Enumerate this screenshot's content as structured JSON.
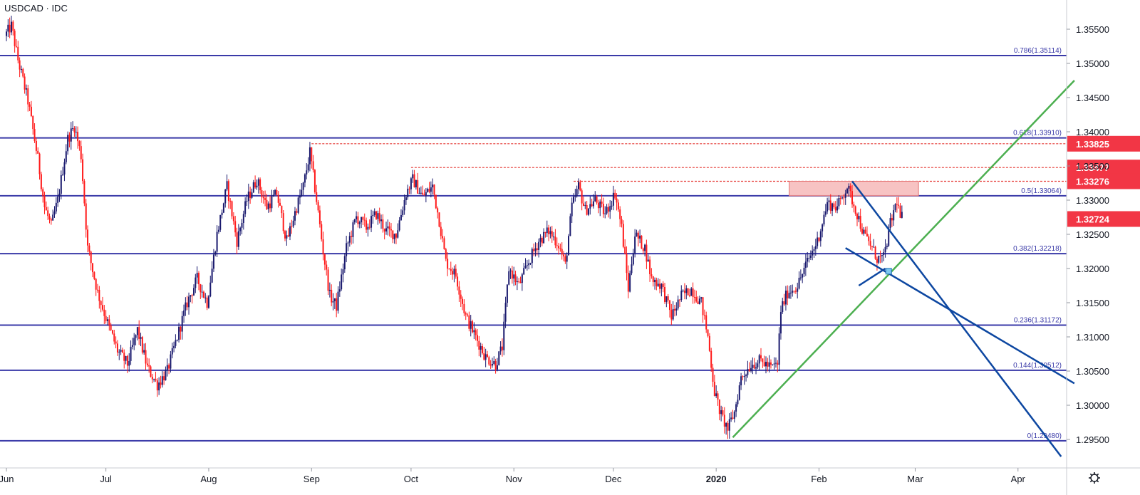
{
  "chart_data": {
    "type": "candlestick",
    "title": "USDCAD · IDC",
    "y_range": [
      1.2925,
      1.358
    ],
    "y_ticks": [
      "1.35500",
      "1.35000",
      "1.34500",
      "1.34000",
      "1.33500",
      "1.33000",
      "1.32500",
      "1.32000",
      "1.31500",
      "1.31000",
      "1.30500",
      "1.30000",
      "1.29500"
    ],
    "x_ticks": [
      {
        "label": "Jun",
        "day": 0
      },
      {
        "label": "Jul",
        "day": 30
      },
      {
        "label": "Aug",
        "day": 61
      },
      {
        "label": "Sep",
        "day": 92
      },
      {
        "label": "Oct",
        "day": 122
      },
      {
        "label": "Nov",
        "day": 153
      },
      {
        "label": "Dec",
        "day": 183
      },
      {
        "label": "2020",
        "day": 214,
        "bold": true
      },
      {
        "label": "Feb",
        "day": 245
      },
      {
        "label": "Mar",
        "day": 274
      },
      {
        "label": "Apr",
        "day": 305
      }
    ],
    "fib_levels": [
      {
        "label": "0.786(1.35114)",
        "value": 1.35114
      },
      {
        "label": "0.618(1.33910)",
        "value": 1.3391
      },
      {
        "label": "0.5(1.33064)",
        "value": 1.33064
      },
      {
        "label": "0.382(1.32218)",
        "value": 1.32218
      },
      {
        "label": "0.236(1.31172)",
        "value": 1.31172
      },
      {
        "label": "0.144(1.30512)",
        "value": 1.30512
      },
      {
        "label": "0(1.29480)",
        "value": 1.2948
      }
    ],
    "resistance_levels": [
      {
        "label": "1.33825",
        "value": 1.33825,
        "start_day": 92
      },
      {
        "label": "1.33477",
        "value": 1.33477,
        "start_day": 122
      },
      {
        "label": "1.33276",
        "value": 1.33276,
        "start_day": 171
      }
    ],
    "current_price": {
      "label": "1.32724",
      "value": 1.32724
    },
    "resistance_zone": {
      "start_day": 236,
      "end_day": 275,
      "low": 1.33064,
      "high": 1.33276
    },
    "trendlines": [
      {
        "color": "#4caf50",
        "points": [
          [
            219,
            1.2953
          ],
          [
            322,
            1.3475
          ]
        ]
      },
      {
        "color": "#0d47a1",
        "points": [
          [
            255,
            1.33276
          ],
          [
            318,
            1.2925
          ]
        ]
      },
      {
        "color": "#0d47a1",
        "points": [
          [
            253,
            1.323
          ],
          [
            322,
            1.3032
          ]
        ]
      },
      {
        "color": "#0d47a1",
        "points": [
          [
            257,
            1.3175
          ],
          [
            265,
            1.32
          ]
        ]
      }
    ],
    "pivot_marker": {
      "day": 266,
      "value": 1.3196
    },
    "anchors": [
      [
        0,
        1.354
      ],
      [
        2,
        1.3555
      ],
      [
        4,
        1.3505
      ],
      [
        7,
        1.3445
      ],
      [
        10,
        1.336
      ],
      [
        12,
        1.329
      ],
      [
        14,
        1.3262
      ],
      [
        16,
        1.33
      ],
      [
        19,
        1.339
      ],
      [
        21,
        1.3408
      ],
      [
        23,
        1.3365
      ],
      [
        25,
        1.323
      ],
      [
        28,
        1.3165
      ],
      [
        31,
        1.312
      ],
      [
        34,
        1.308
      ],
      [
        37,
        1.306
      ],
      [
        40,
        1.311
      ],
      [
        43,
        1.3055
      ],
      [
        46,
        1.303
      ],
      [
        49,
        1.305
      ],
      [
        52,
        1.31
      ],
      [
        55,
        1.315
      ],
      [
        58,
        1.3185
      ],
      [
        61,
        1.315
      ],
      [
        64,
        1.325
      ],
      [
        67,
        1.332
      ],
      [
        70,
        1.324
      ],
      [
        73,
        1.33
      ],
      [
        76,
        1.333
      ],
      [
        79,
        1.329
      ],
      [
        82,
        1.331
      ],
      [
        85,
        1.324
      ],
      [
        88,
        1.329
      ],
      [
        90,
        1.332
      ],
      [
        92,
        1.337
      ],
      [
        94,
        1.33
      ],
      [
        96,
        1.3225
      ],
      [
        98,
        1.316
      ],
      [
        100,
        1.3145
      ],
      [
        103,
        1.323
      ],
      [
        106,
        1.3275
      ],
      [
        109,
        1.326
      ],
      [
        112,
        1.328
      ],
      [
        115,
        1.3255
      ],
      [
        118,
        1.325
      ],
      [
        121,
        1.331
      ],
      [
        123,
        1.333
      ],
      [
        126,
        1.3305
      ],
      [
        129,
        1.332
      ],
      [
        131,
        1.327
      ],
      [
        133,
        1.321
      ],
      [
        136,
        1.319
      ],
      [
        139,
        1.313
      ],
      [
        142,
        1.31
      ],
      [
        145,
        1.307
      ],
      [
        148,
        1.306
      ],
      [
        150,
        1.3085
      ],
      [
        152,
        1.32
      ],
      [
        155,
        1.3175
      ],
      [
        158,
        1.321
      ],
      [
        161,
        1.324
      ],
      [
        164,
        1.3255
      ],
      [
        167,
        1.3235
      ],
      [
        169,
        1.3205
      ],
      [
        171,
        1.329
      ],
      [
        173,
        1.332
      ],
      [
        175,
        1.3285
      ],
      [
        178,
        1.33
      ],
      [
        181,
        1.328
      ],
      [
        184,
        1.331
      ],
      [
        186,
        1.326
      ],
      [
        188,
        1.317
      ],
      [
        190,
        1.325
      ],
      [
        193,
        1.323
      ],
      [
        195,
        1.3185
      ],
      [
        198,
        1.3175
      ],
      [
        201,
        1.313
      ],
      [
        204,
        1.316
      ],
      [
        207,
        1.317
      ],
      [
        210,
        1.315
      ],
      [
        212,
        1.31
      ],
      [
        214,
        1.302
      ],
      [
        216,
        1.2985
      ],
      [
        218,
        1.2965
      ],
      [
        220,
        1.299
      ],
      [
        222,
        1.304
      ],
      [
        225,
        1.306
      ],
      [
        228,
        1.3065
      ],
      [
        231,
        1.3055
      ],
      [
        233,
        1.306
      ],
      [
        234,
        1.314
      ],
      [
        236,
        1.3165
      ],
      [
        239,
        1.3175
      ],
      [
        242,
        1.321
      ],
      [
        245,
        1.324
      ],
      [
        248,
        1.3295
      ],
      [
        251,
        1.329
      ],
      [
        254,
        1.332
      ],
      [
        257,
        1.328
      ],
      [
        259,
        1.325
      ],
      [
        261,
        1.3235
      ],
      [
        263,
        1.3215
      ],
      [
        265,
        1.3215
      ],
      [
        267,
        1.3265
      ],
      [
        269,
        1.33
      ],
      [
        270,
        1.3275
      ]
    ]
  }
}
